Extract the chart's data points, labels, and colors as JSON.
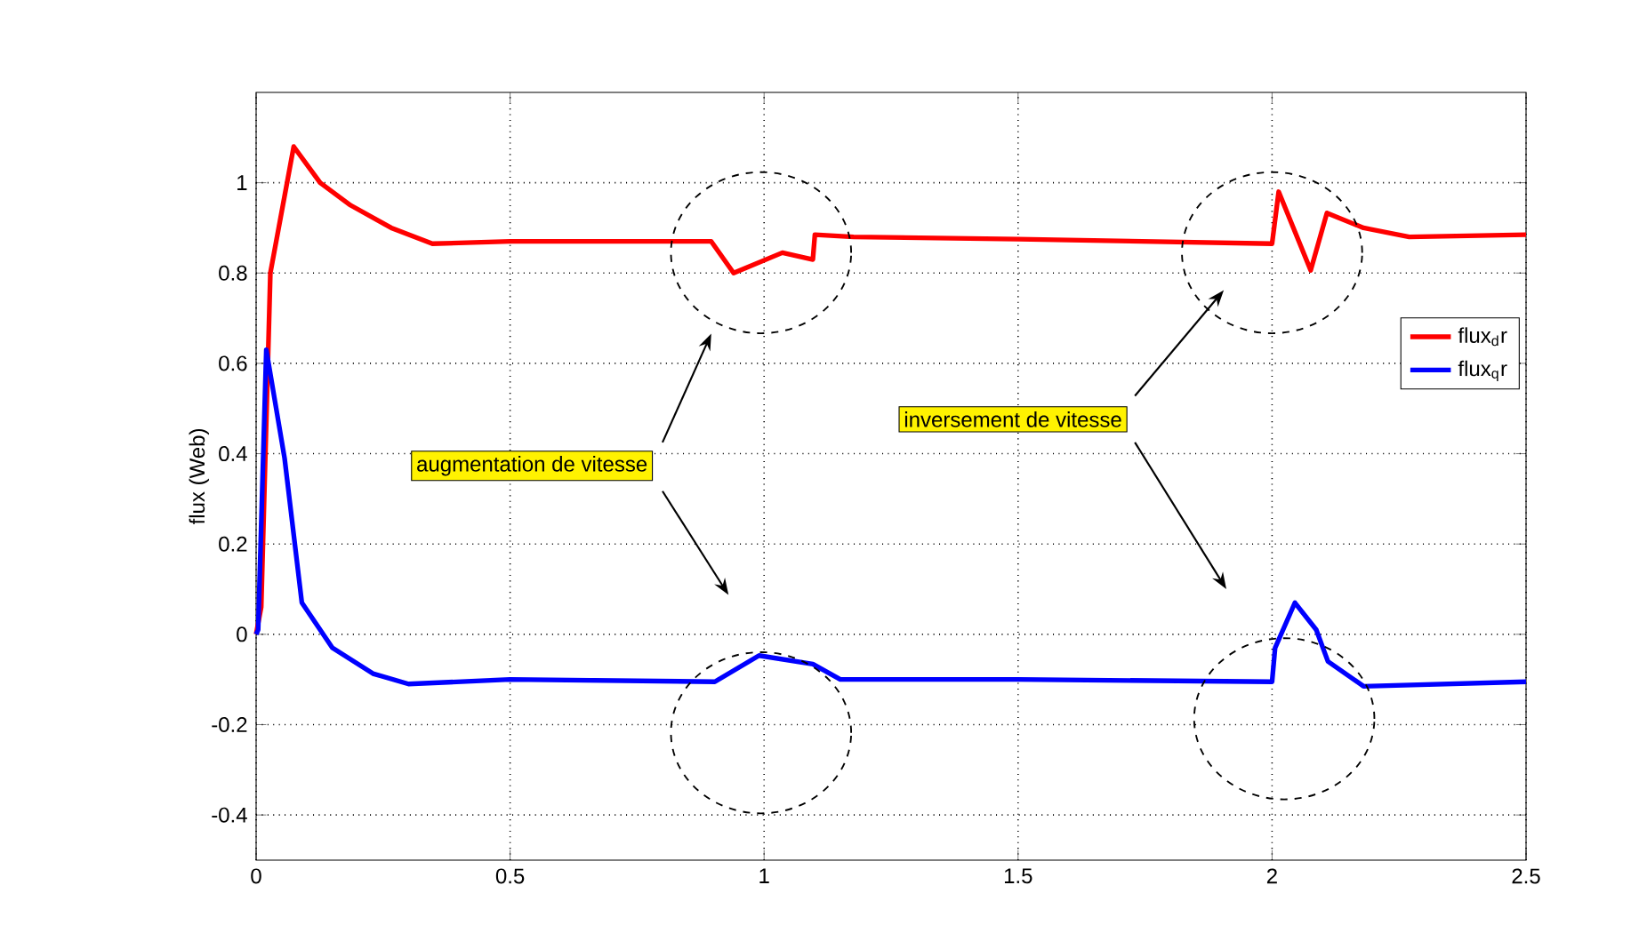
{
  "chart_data": {
    "type": "line",
    "ylabel": "flux (Web)",
    "annotations": [
      "augmentation de vitesse",
      "inversement de vitesse"
    ],
    "xlim": [
      0,
      2.5
    ],
    "ylim": [
      -0.5,
      1.2
    ],
    "xticks": [
      0,
      0.5,
      1,
      1.5,
      2,
      2.5
    ],
    "yticks": [
      -0.4,
      -0.2,
      0,
      0.2,
      0.4,
      0.6,
      0.8,
      1
    ],
    "grid": true,
    "legend": "right",
    "line_style": "solid",
    "marker": "none",
    "series": [
      {
        "name": "flux$_{d}$r",
        "color": "#ff0000",
        "x": [
          0,
          0.01,
          0.028,
          0.074,
          0.126,
          0.186,
          0.266,
          0.347,
          0.5,
          0.896,
          0.94,
          1.036,
          1.096,
          1.1,
          1.176,
          1.5,
          2.0,
          2.013,
          2.076,
          2.108,
          2.18,
          2.27,
          2.5
        ],
        "values": [
          0,
          0.06,
          0.8,
          1.08,
          1.0,
          0.95,
          0.9,
          0.865,
          0.87,
          0.87,
          0.8,
          0.845,
          0.83,
          0.885,
          0.88,
          0.875,
          0.865,
          0.98,
          0.806,
          0.933,
          0.9,
          0.88,
          0.885
        ]
      },
      {
        "name": "flux$_{q}$r",
        "color": "#0000ff",
        "x": [
          0,
          0.004,
          0.02,
          0.056,
          0.09,
          0.15,
          0.23,
          0.3,
          0.5,
          0.903,
          0.99,
          1.096,
          1.15,
          1.5,
          2.0,
          2.006,
          2.045,
          2.087,
          2.11,
          2.18,
          2.5
        ],
        "values": [
          0,
          0.01,
          0.63,
          0.39,
          0.07,
          -0.03,
          -0.087,
          -0.11,
          -0.1,
          -0.105,
          -0.047,
          -0.066,
          -0.1,
          -0.1,
          -0.105,
          -0.03,
          0.07,
          0.01,
          -0.06,
          -0.115,
          -0.105
        ]
      }
    ]
  }
}
